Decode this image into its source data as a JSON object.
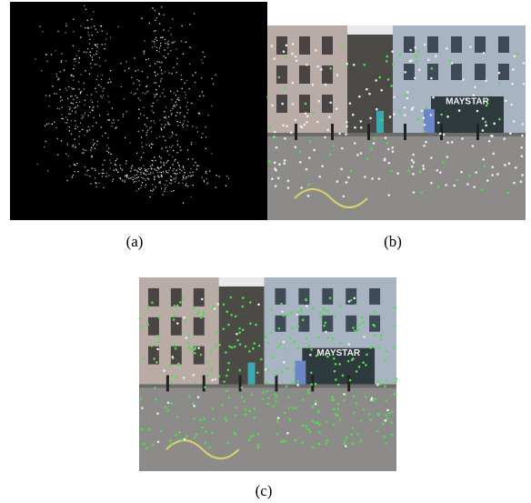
{
  "figure": {
    "panels": [
      {
        "caption": "(a)"
      },
      {
        "caption": "(b)"
      },
      {
        "caption": "(c)"
      }
    ],
    "sign_text": "MAYSTAR"
  }
}
